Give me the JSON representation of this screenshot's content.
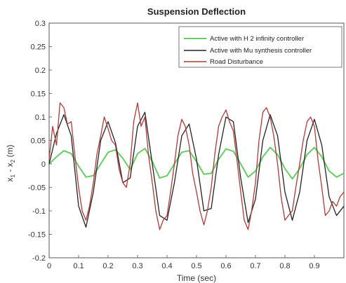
{
  "chart_data": {
    "type": "line",
    "title": "Suspension Deflection",
    "xlabel": "Time (sec)",
    "ylabel_parts": [
      "x",
      "1",
      " - x",
      "2",
      " (m)"
    ],
    "xlim": [
      0,
      1
    ],
    "ylim": [
      -0.2,
      0.3
    ],
    "grid": false,
    "legend_position": "top-right",
    "x_ticks": [
      0,
      0.1,
      0.2,
      0.3,
      0.4,
      0.5,
      0.6,
      0.7,
      0.8,
      0.9
    ],
    "x_tick_labels": [
      "0",
      "0.1",
      "0.2",
      "0.3",
      "0.4",
      "0.5",
      "0.6",
      "0.7",
      "0.8",
      "0.9"
    ],
    "y_ticks": [
      -0.2,
      -0.15,
      -0.1,
      -0.05,
      0,
      0.05,
      0.1,
      0.15,
      0.2,
      0.25,
      0.3
    ],
    "y_tick_labels": [
      "-0.2",
      "-0.15",
      "-0.1",
      "-0.05",
      "0",
      "0.05",
      "0.1",
      "0.15",
      "0.2",
      "0.25",
      "0.3"
    ],
    "series": [
      {
        "name": "Active with H 2 infinity controller",
        "color": "#66cc66",
        "x": [
          0,
          0.025,
          0.05,
          0.075,
          0.1,
          0.125,
          0.15,
          0.175,
          0.2,
          0.225,
          0.25,
          0.275,
          0.3,
          0.325,
          0.35,
          0.375,
          0.4,
          0.425,
          0.45,
          0.475,
          0.5,
          0.525,
          0.55,
          0.575,
          0.6,
          0.625,
          0.65,
          0.675,
          0.7,
          0.725,
          0.75,
          0.775,
          0.8,
          0.825,
          0.85,
          0.875,
          0.9,
          0.925,
          0.95,
          0.975,
          1.0
        ],
        "y": [
          0,
          0.015,
          0.028,
          0.022,
          -0.005,
          -0.028,
          -0.025,
          0.0,
          0.025,
          0.03,
          0.012,
          -0.012,
          0.022,
          0.033,
          0.005,
          -0.03,
          -0.025,
          0.0,
          0.025,
          0.028,
          0.005,
          -0.022,
          -0.02,
          0.01,
          0.032,
          0.027,
          0.0,
          -0.028,
          -0.015,
          0.015,
          0.035,
          0.02,
          -0.01,
          -0.032,
          -0.01,
          0.02,
          0.035,
          0.015,
          -0.015,
          -0.028,
          -0.02
        ]
      },
      {
        "name": "Active with Mu synthesis controller",
        "color": "#222222",
        "x": [
          0,
          0.025,
          0.05,
          0.075,
          0.1,
          0.125,
          0.15,
          0.175,
          0.2,
          0.225,
          0.25,
          0.275,
          0.3,
          0.325,
          0.35,
          0.375,
          0.4,
          0.425,
          0.45,
          0.475,
          0.5,
          0.525,
          0.55,
          0.575,
          0.6,
          0.625,
          0.65,
          0.675,
          0.7,
          0.725,
          0.75,
          0.775,
          0.8,
          0.825,
          0.85,
          0.875,
          0.9,
          0.925,
          0.95,
          0.975,
          1.0
        ],
        "y": [
          0,
          0.065,
          0.105,
          0.06,
          -0.09,
          -0.135,
          -0.06,
          0.05,
          0.09,
          0.045,
          -0.04,
          -0.03,
          0.08,
          0.11,
          0.0,
          -0.11,
          -0.12,
          -0.04,
          0.06,
          0.085,
          0.01,
          -0.1,
          -0.095,
          0.02,
          0.1,
          0.09,
          -0.03,
          -0.125,
          -0.075,
          0.05,
          0.105,
          0.06,
          -0.06,
          -0.12,
          -0.06,
          0.05,
          0.095,
          0.04,
          -0.07,
          -0.11,
          -0.09
        ]
      },
      {
        "name": "Road Disturbance",
        "color": "#b03a3a",
        "x": [
          0,
          0.012,
          0.025,
          0.037,
          0.05,
          0.062,
          0.075,
          0.087,
          0.1,
          0.112,
          0.125,
          0.137,
          0.15,
          0.162,
          0.175,
          0.187,
          0.2,
          0.212,
          0.225,
          0.237,
          0.25,
          0.262,
          0.275,
          0.287,
          0.3,
          0.312,
          0.325,
          0.337,
          0.35,
          0.362,
          0.375,
          0.387,
          0.4,
          0.412,
          0.425,
          0.437,
          0.45,
          0.462,
          0.475,
          0.487,
          0.5,
          0.512,
          0.525,
          0.537,
          0.55,
          0.562,
          0.575,
          0.587,
          0.6,
          0.612,
          0.625,
          0.637,
          0.65,
          0.662,
          0.675,
          0.687,
          0.7,
          0.712,
          0.725,
          0.737,
          0.75,
          0.762,
          0.775,
          0.787,
          0.8,
          0.812,
          0.825,
          0.837,
          0.85,
          0.862,
          0.875,
          0.887,
          0.9,
          0.912,
          0.925,
          0.937,
          0.95,
          0.962,
          0.975,
          0.987,
          1.0
        ],
        "y": [
          0.01,
          0.08,
          0.04,
          0.13,
          0.12,
          0.085,
          0.09,
          0.02,
          -0.05,
          -0.1,
          -0.12,
          -0.09,
          -0.04,
          0.02,
          0.06,
          0.1,
          0.075,
          0.05,
          0.04,
          -0.01,
          -0.04,
          -0.05,
          0.0,
          0.09,
          0.13,
          0.08,
          0.1,
          0.02,
          -0.04,
          -0.1,
          -0.14,
          -0.12,
          -0.11,
          -0.06,
          0.0,
          0.06,
          0.095,
          0.08,
          0.04,
          -0.02,
          -0.06,
          -0.1,
          -0.13,
          -0.1,
          -0.05,
          0.02,
          0.08,
          0.1,
          0.115,
          0.09,
          0.07,
          0.01,
          -0.06,
          -0.12,
          -0.14,
          -0.1,
          -0.04,
          0.05,
          0.11,
          0.12,
          0.1,
          0.06,
          0.0,
          -0.07,
          -0.12,
          -0.11,
          -0.1,
          -0.05,
          0.0,
          0.05,
          0.09,
          0.1,
          0.08,
          0.01,
          -0.05,
          -0.11,
          -0.1,
          -0.08,
          -0.09,
          -0.07,
          -0.06
        ]
      }
    ]
  }
}
